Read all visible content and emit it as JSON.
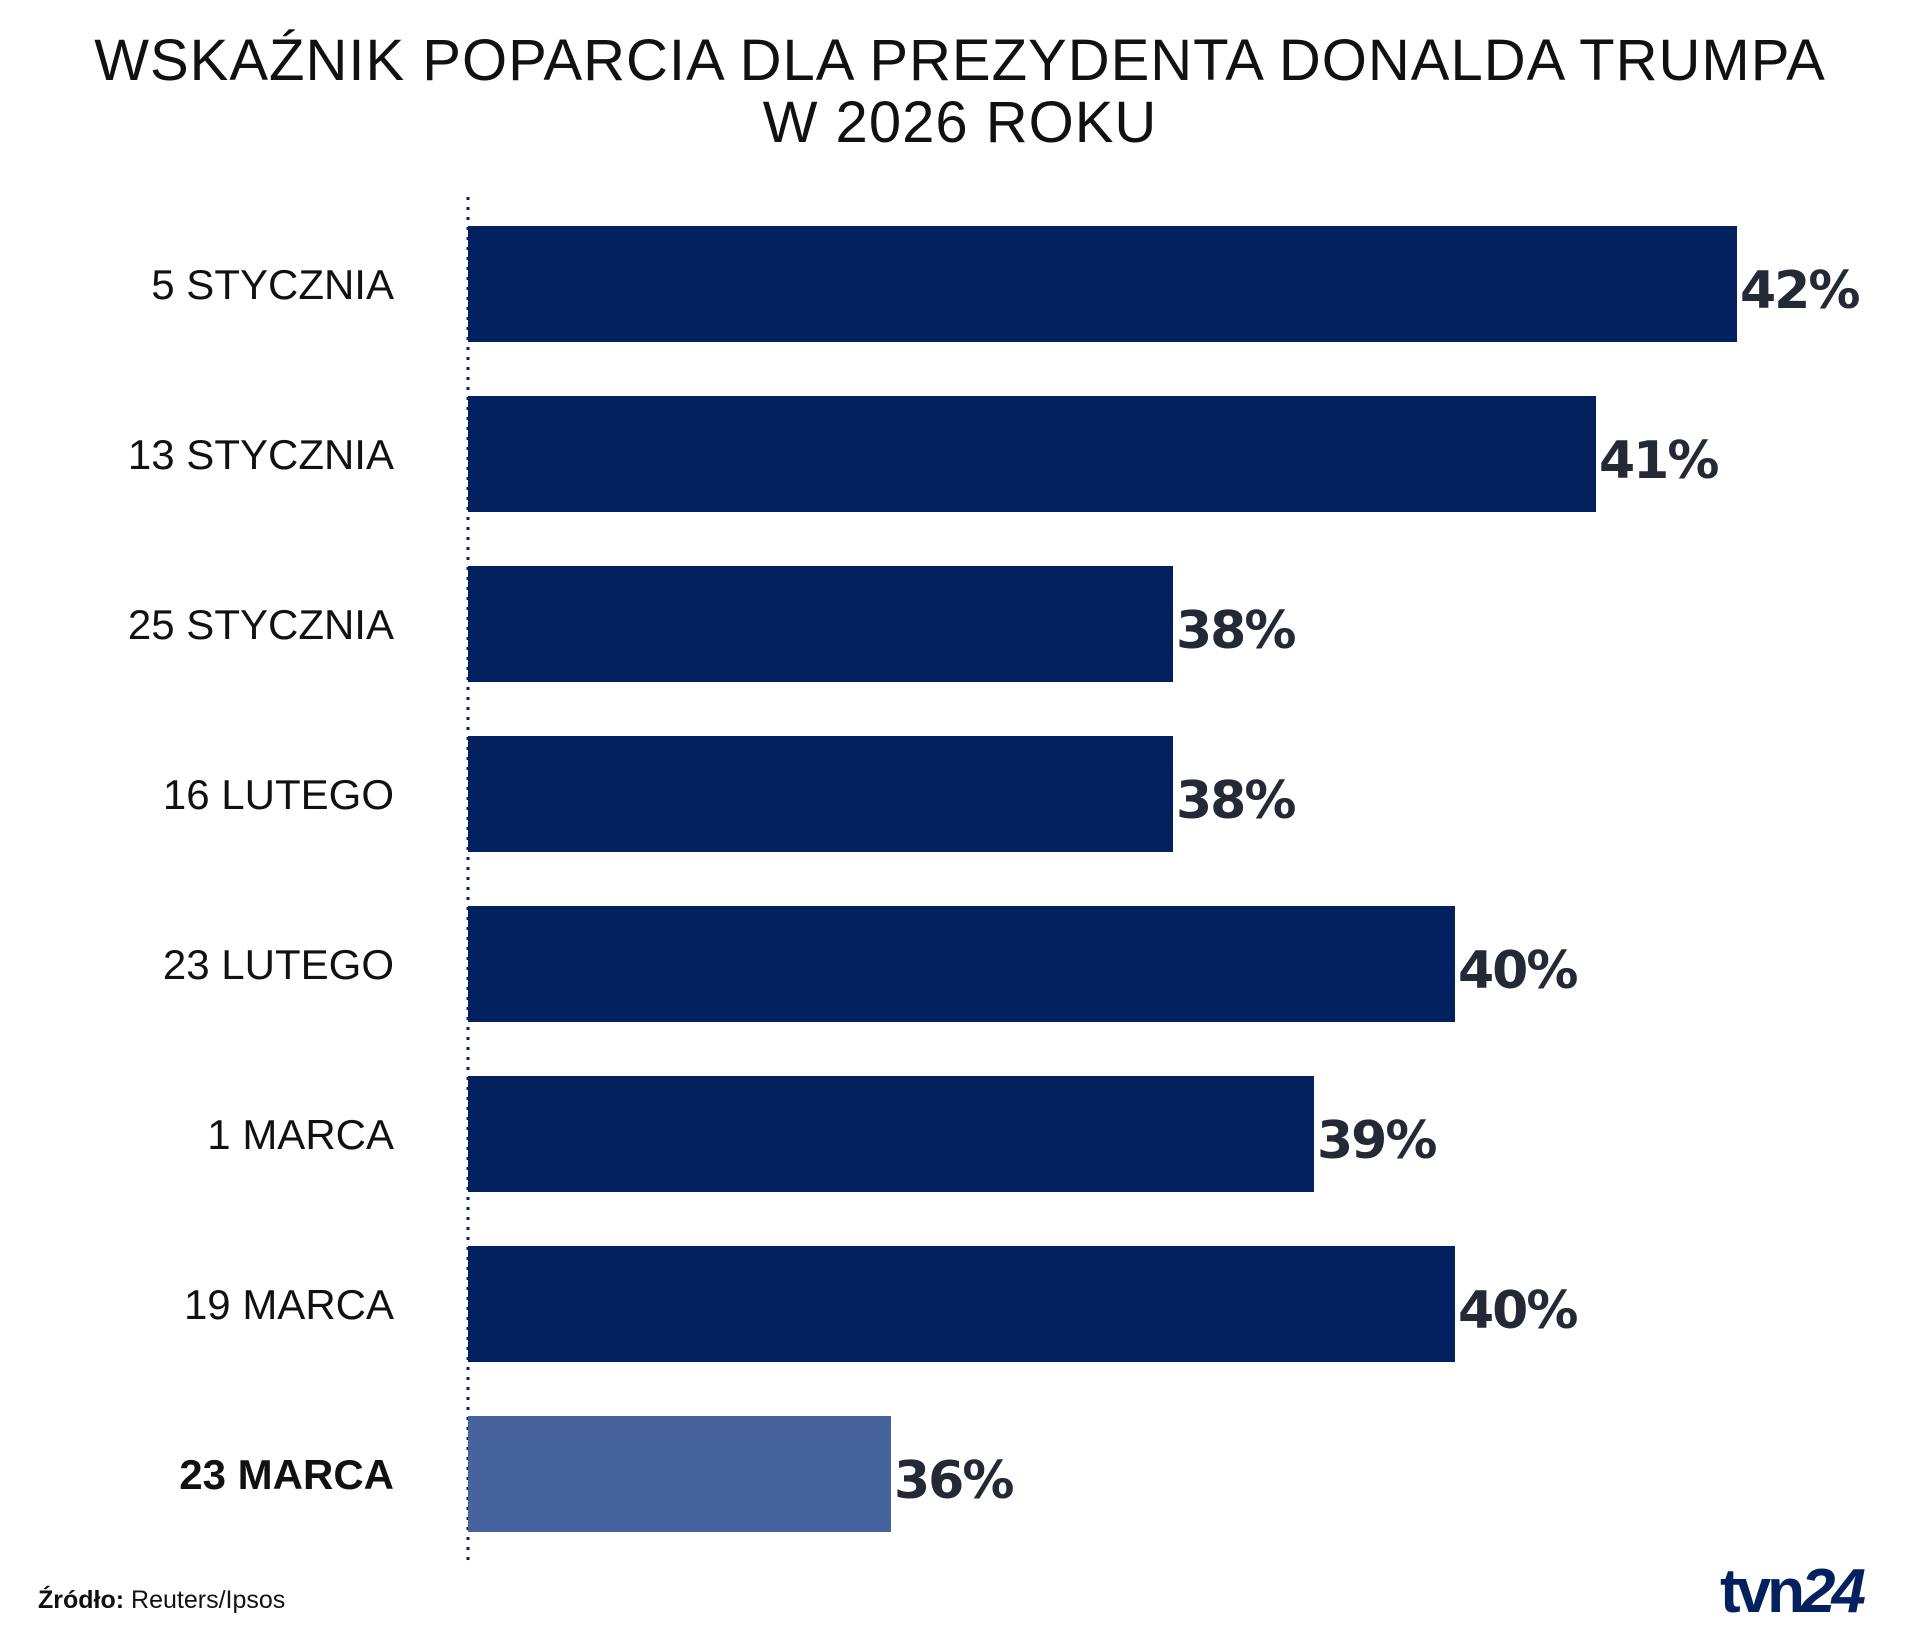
{
  "chart_data": {
    "type": "bar",
    "orientation": "horizontal",
    "title": "WSKAŹNIK POPARCIA DLA PREZYDENTA DONALDA TRUMPA W 2026 ROKU",
    "title_lines": [
      "WSKAŹNIK POPARCIA DLA PREZYDENTA DONALDA TRUMPA",
      "W 2026 ROKU"
    ],
    "categories": [
      "5 STYCZNIA",
      "13 STYCZNIA",
      "25 STYCZNIA",
      "16 LUTEGO",
      "23 LUTEGO",
      "1 MARCA",
      "19 MARCA",
      "23 MARCA"
    ],
    "values": [
      42,
      41,
      38,
      38,
      40,
      39,
      40,
      36
    ],
    "data_labels": [
      "42%",
      "41%",
      "38%",
      "38%",
      "40%",
      "39%",
      "40%",
      "36%"
    ],
    "highlighted_category": "23 MARCA",
    "xlim": [
      33,
      42
    ],
    "xlabel": "",
    "ylabel": "",
    "grid": false,
    "colors": {
      "bar": "#03215e",
      "highlight": "#46639e",
      "label": "#232a36",
      "axis": "#03215e"
    }
  },
  "source": {
    "label": "Źródło:",
    "value": "Reuters/Ipsos"
  },
  "logo": {
    "text": "tvn",
    "text2": "24"
  }
}
